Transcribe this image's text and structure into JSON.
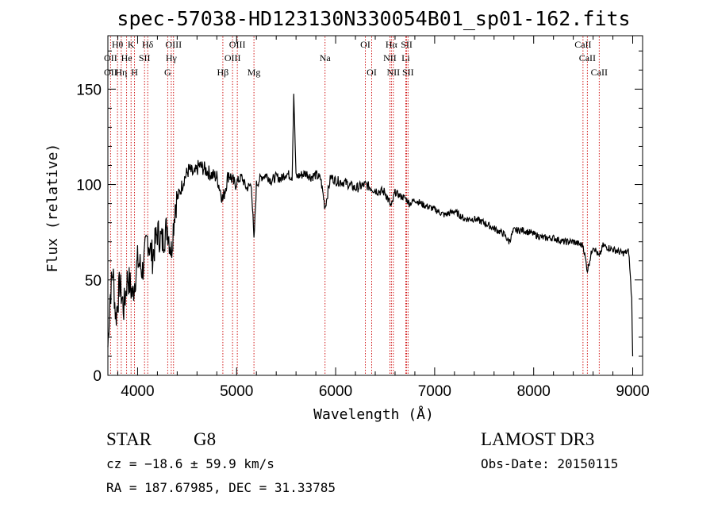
{
  "chart_data": {
    "type": "line",
    "title": "spec-57038-HD123130N330054B01_sp01-162.fits",
    "xlabel": "Wavelength (Å)",
    "ylabel": "Flux (relative)",
    "xlim": [
      3700,
      9100
    ],
    "ylim": [
      0,
      178
    ],
    "x_ticks": [
      4000,
      5000,
      6000,
      7000,
      8000,
      9000
    ],
    "y_ticks": [
      0,
      50,
      100,
      150
    ],
    "x_tick_labels": [
      "4000",
      "5000",
      "6000",
      "7000",
      "8000",
      "9000"
    ],
    "y_tick_labels": [
      "0",
      "50",
      "100",
      "150"
    ],
    "series": [
      {
        "name": "flux",
        "x": [
          3700,
          3720,
          3750,
          3780,
          3820,
          3860,
          3900,
          3950,
          4000,
          4050,
          4100,
          4150,
          4200,
          4250,
          4300,
          4340,
          4380,
          4420,
          4470,
          4520,
          4570,
          4620,
          4680,
          4750,
          4800,
          4861,
          4920,
          4980,
          5050,
          5100,
          5150,
          5175,
          5200,
          5250,
          5300,
          5350,
          5400,
          5450,
          5500,
          5560,
          5577,
          5600,
          5650,
          5700,
          5750,
          5800,
          5850,
          5893,
          5950,
          6000,
          6100,
          6200,
          6300,
          6400,
          6500,
          6563,
          6600,
          6650,
          6700,
          6750,
          6800,
          6900,
          7000,
          7100,
          7200,
          7300,
          7400,
          7500,
          7600,
          7700,
          7750,
          7800,
          7900,
          8000,
          8100,
          8200,
          8300,
          8400,
          8500,
          8542,
          8600,
          8662,
          8700,
          8800,
          8900,
          8960,
          8990,
          9000
        ],
        "y": [
          15,
          40,
          55,
          30,
          48,
          35,
          52,
          42,
          60,
          55,
          72,
          62,
          75,
          70,
          78,
          65,
          90,
          95,
          103,
          108,
          105,
          110,
          108,
          105,
          104,
          92,
          106,
          100,
          104,
          98,
          100,
          70,
          100,
          104,
          105,
          102,
          104,
          103,
          106,
          104,
          148,
          104,
          105,
          106,
          104,
          105,
          103,
          88,
          104,
          102,
          101,
          98,
          100,
          97,
          96,
          88,
          96,
          94,
          93,
          90,
          92,
          89,
          87,
          84,
          86,
          82,
          82,
          80,
          77,
          74,
          70,
          76,
          76,
          74,
          72,
          72,
          70,
          70,
          68,
          55,
          68,
          62,
          68,
          66,
          64,
          65,
          40,
          10
        ]
      }
    ],
    "lines_top": [
      {
        "label": "Hθ",
        "x": 3797
      },
      {
        "label": "K",
        "x": 3934
      },
      {
        "label": "Hδ",
        "x": 4102
      },
      {
        "label": "OIII",
        "x": 4363
      },
      {
        "label": "OIII",
        "x": 5007
      },
      {
        "label": "OI",
        "x": 6300
      },
      {
        "label": "Hα",
        "x": 6563
      },
      {
        "label": "SII",
        "x": 6717
      },
      {
        "label": "CaII",
        "x": 8498
      }
    ],
    "lines_mid": [
      {
        "label": "OII",
        "x": 3727
      },
      {
        "label": "He",
        "x": 3889
      },
      {
        "label": "SII",
        "x": 4070
      },
      {
        "label": "Hγ",
        "x": 4340
      },
      {
        "label": "OIII",
        "x": 4959
      },
      {
        "label": "Na",
        "x": 5893
      },
      {
        "label": "NII",
        "x": 6548
      },
      {
        "label": "Li",
        "x": 6708
      },
      {
        "label": "CaII",
        "x": 8542
      }
    ],
    "lines_low": [
      {
        "label": "OII",
        "x": 3727
      },
      {
        "label": "Hη",
        "x": 3835
      },
      {
        "label": "H",
        "x": 3969
      },
      {
        "label": "G",
        "x": 4304
      },
      {
        "label": "Hβ",
        "x": 4861
      },
      {
        "label": "Mg",
        "x": 5175
      },
      {
        "label": "OI",
        "x": 6364
      },
      {
        "label": "NII",
        "x": 6583
      },
      {
        "label": "SII",
        "x": 6731
      },
      {
        "label": "CaII",
        "x": 8662
      }
    ],
    "line_color": "#cc0000"
  },
  "info": {
    "object_class": "STAR",
    "subclass": "G8",
    "survey": "LAMOST DR3",
    "redshift_text": "cz = −18.6 ± 59.9 km/s",
    "obs_date": "Obs-Date: 20150115",
    "coords": "RA = 187.67985, DEC =  31.33785"
  }
}
